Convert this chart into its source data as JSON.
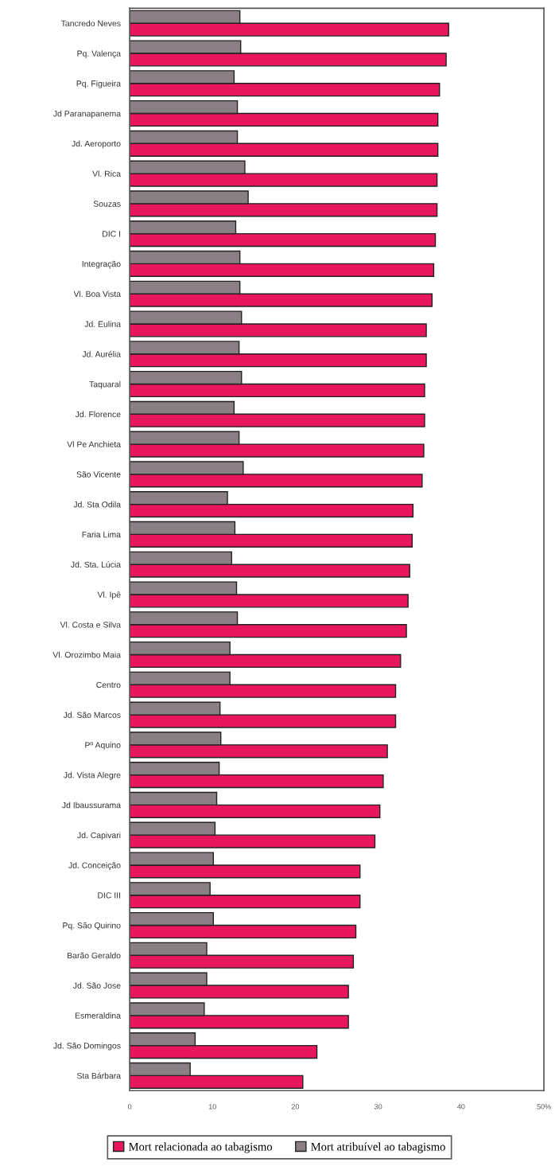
{
  "chart_data": {
    "type": "bar",
    "orientation": "horizontal",
    "categories": [
      "Tancredo Neves",
      "Pq. Valença",
      "Pq. Figueira",
      "Jd Paranapanema",
      "Jd. Aeroporto",
      "Vl. Rica",
      "Souzas",
      "DIC I",
      "Integração",
      "Vl. Boa Vista",
      "Jd. Eulina",
      "Jd. Aurélia",
      "Taquaral",
      "Jd. Florence",
      "Vl Pe Anchieta",
      "São Vicente",
      "Jd. Sta Odila",
      "Faria Lima",
      "Jd. Sta. Lúcia",
      "Vl. Ipê",
      "Vl. Costa e Silva",
      "Vl. Orozimbo Maia",
      "Centro",
      "Jd. São Marcos",
      "Pº Aquino",
      "Jd. Vista Alegre",
      "Jd Ibaussurama",
      "Jd. Capivari",
      "Jd. Conceição",
      "DIC III",
      "Pq. São Quirino",
      "Barão Geraldo",
      "Jd. São Jose",
      "Esmeraldina",
      "Jd. São Domingos",
      "Sta Bárbara"
    ],
    "series": [
      {
        "name": "Mort relacionada ao tabagismo",
        "color": "#e8175d",
        "values": [
          38.5,
          38.2,
          37.4,
          37.2,
          37.2,
          37.1,
          37.1,
          36.9,
          36.7,
          36.5,
          35.8,
          35.8,
          35.6,
          35.6,
          35.5,
          35.3,
          34.2,
          34.1,
          33.8,
          33.6,
          33.4,
          32.7,
          32.1,
          32.1,
          31.1,
          30.6,
          30.2,
          29.6,
          27.8,
          27.8,
          27.3,
          27.0,
          26.4,
          26.4,
          22.6,
          20.9
        ]
      },
      {
        "name": "Mort atribuível ao tabagismo",
        "color": "#8a7f85",
        "values": [
          13.3,
          13.4,
          12.6,
          13.0,
          13.0,
          13.9,
          14.3,
          12.8,
          13.3,
          13.3,
          13.5,
          13.2,
          13.5,
          12.6,
          13.2,
          13.7,
          11.8,
          12.7,
          12.3,
          12.9,
          13.0,
          12.1,
          12.1,
          10.9,
          11.0,
          10.8,
          10.5,
          10.3,
          10.1,
          9.7,
          10.1,
          9.3,
          9.3,
          9.0,
          7.9,
          7.3
        ]
      }
    ],
    "xlim": [
      0,
      50
    ],
    "xticks": [
      0,
      10,
      20,
      30,
      40,
      {
        "value": 50,
        "label": "50%"
      }
    ],
    "grid": false,
    "legend": "bottom"
  }
}
